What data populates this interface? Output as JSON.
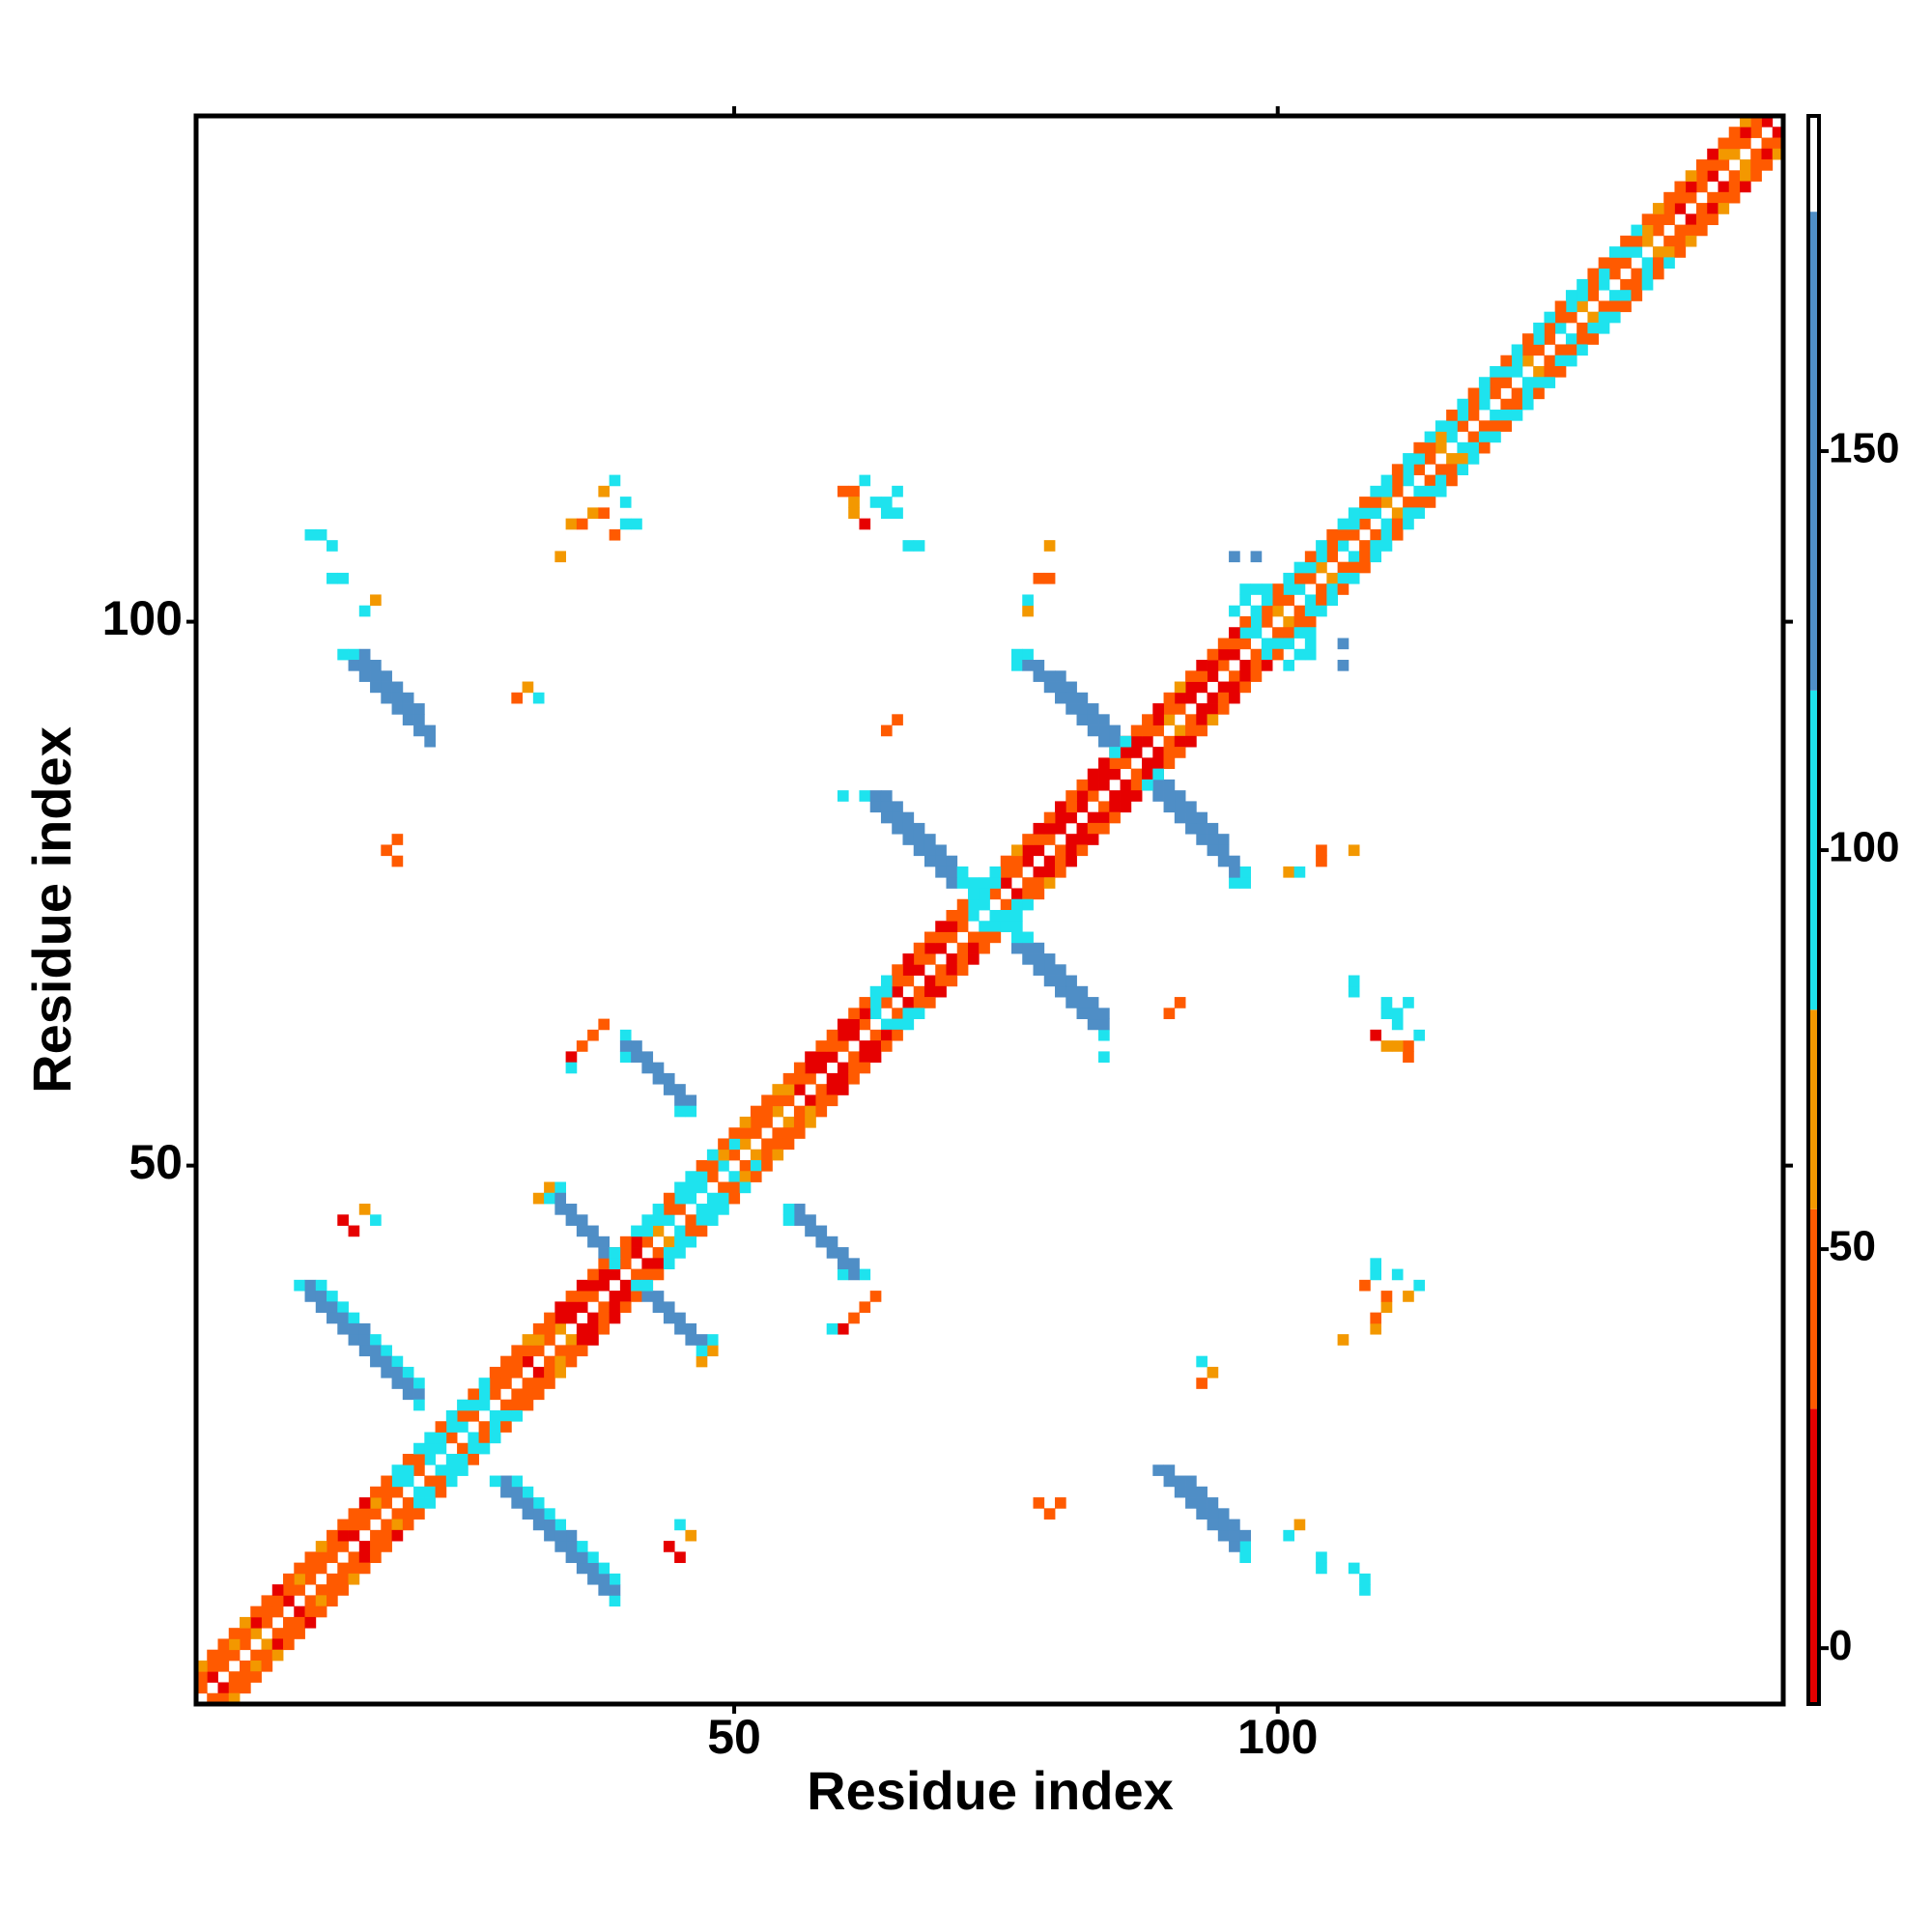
{
  "chart_data": {
    "type": "heatmap",
    "x_label": "Residue index",
    "y_label": "Residue index",
    "xlim": [
      0.5,
      146.5
    ],
    "ylim": [
      0.5,
      146.5
    ],
    "xticks": [
      50,
      100
    ],
    "yticks": [
      50,
      100
    ],
    "symmetric": true,
    "colorbar": {
      "lim": [
        -7,
        192
      ],
      "ticks": [
        0,
        50,
        100,
        150
      ],
      "stops": [
        {
          "value": -7,
          "color": "#e60000"
        },
        {
          "value": 30,
          "color": "#ff5a00"
        },
        {
          "value": 55,
          "color": "#f39800"
        },
        {
          "value": 80,
          "color": "#1ee3ee"
        },
        {
          "value": 120,
          "color": "#4f8ec6"
        },
        {
          "value": 180,
          "color": "#ffffff"
        }
      ]
    },
    "diagonals": [
      {
        "offset": 1,
        "start": 1,
        "values": [
          40,
          10,
          40,
          40,
          40,
          65,
          40,
          40,
          10,
          40,
          40,
          40,
          40,
          40,
          10,
          40,
          40,
          40,
          40,
          95,
          40,
          95,
          95,
          40,
          95,
          40,
          95,
          40,
          40,
          40,
          10,
          40,
          40,
          65,
          10,
          10,
          40,
          10,
          10,
          40,
          10,
          40,
          65,
          95,
          40,
          95,
          95,
          40,
          95,
          40,
          65,
          40,
          40,
          65,
          40,
          10,
          40,
          10,
          10,
          40,
          10,
          40,
          95,
          40,
          10,
          40,
          10,
          40,
          10,
          40,
          40,
          95,
          95,
          40,
          10,
          40,
          10,
          10,
          40,
          10,
          10,
          10,
          40,
          10,
          10,
          40,
          10,
          10,
          40,
          65,
          40,
          10,
          10,
          10,
          40,
          10,
          40,
          95,
          40,
          65,
          40,
          95,
          40,
          65,
          40,
          95,
          40,
          40,
          95,
          65,
          40,
          95,
          40,
          40,
          65,
          95,
          40,
          40,
          95,
          40,
          40,
          95,
          65,
          40,
          40,
          95,
          40,
          65,
          40,
          95,
          40,
          40,
          95,
          65,
          40,
          40,
          10,
          40,
          40,
          10,
          40,
          65,
          40,
          40,
          10
        ]
      },
      {
        "offset": 2,
        "start": 1,
        "values": [
          40,
          40,
          40,
          65,
          40,
          10,
          40,
          40,
          40,
          65,
          40,
          40,
          40,
          10,
          40,
          40,
          65,
          40,
          95,
          95,
          40,
          95,
          95,
          95,
          40,
          95,
          95,
          40,
          40,
          40,
          40,
          65,
          40,
          10,
          10,
          40,
          10,
          10,
          10,
          40,
          10,
          95,
          95,
          40,
          95,
          95,
          95,
          40,
          65,
          95,
          40,
          40,
          40,
          40,
          65,
          40,
          10,
          10,
          40,
          10,
          10,
          10,
          95,
          95,
          40,
          10,
          40,
          10,
          40,
          10,
          40,
          95,
          95,
          95,
          40,
          40,
          10,
          40,
          10,
          10,
          40,
          10,
          10,
          10,
          40,
          10,
          10,
          40,
          10,
          40,
          10,
          10,
          40,
          10,
          10,
          40,
          95,
          95,
          40,
          40,
          95,
          40,
          95,
          95,
          40,
          40,
          95,
          95,
          40,
          95,
          40,
          95,
          95,
          40,
          65,
          95,
          95,
          40,
          95,
          40,
          95,
          95,
          40,
          95,
          40,
          40,
          95,
          95,
          40,
          95,
          40,
          95,
          40,
          65,
          40,
          40,
          40,
          10,
          40,
          40,
          65,
          40,
          10,
          40
        ]
      },
      {
        "offset": 3,
        "start": 1,
        "values": [
          65,
          40,
          40,
          40,
          65,
          40,
          40,
          10,
          40,
          40,
          40,
          65,
          40,
          40,
          40,
          10,
          40,
          40,
          95,
          40,
          95,
          95,
          40,
          95,
          95,
          40,
          95,
          40,
          40,
          40,
          65,
          40,
          40,
          10,
          40,
          10,
          40,
          40,
          10,
          40,
          95,
          95,
          95,
          40,
          95,
          95,
          40,
          95,
          40,
          40,
          65,
          40,
          40,
          65,
          40,
          40,
          10,
          40,
          40,
          10,
          40,
          40,
          95,
          95,
          40,
          10,
          40,
          40,
          10,
          40,
          40,
          95,
          95,
          95,
          40,
          65,
          40,
          10,
          40,
          10,
          40,
          40,
          10,
          10,
          40,
          10,
          40,
          40,
          10,
          40,
          65,
          40,
          10,
          40,
          40,
          10,
          40,
          95,
          95,
          40,
          95,
          95,
          40,
          95,
          40,
          95,
          95,
          40,
          95,
          95,
          40,
          95,
          40,
          95,
          95,
          40,
          95,
          40,
          95,
          95,
          40,
          95,
          40,
          95,
          95,
          40,
          95,
          95,
          40,
          40,
          95,
          40,
          95,
          40,
          65,
          40,
          40,
          65,
          40,
          10,
          40,
          40,
          65
        ]
      }
    ],
    "cells": [
      [
        14,
        97,
        95
      ],
      [
        15,
        97,
        95
      ],
      [
        16,
        97,
        150
      ],
      [
        15,
        96,
        150
      ],
      [
        16,
        96,
        150
      ],
      [
        17,
        96,
        150
      ],
      [
        16,
        95,
        150
      ],
      [
        17,
        95,
        150
      ],
      [
        18,
        95,
        150
      ],
      [
        17,
        94,
        150
      ],
      [
        18,
        94,
        150
      ],
      [
        19,
        94,
        150
      ],
      [
        18,
        93,
        150
      ],
      [
        19,
        93,
        150
      ],
      [
        20,
        93,
        150
      ],
      [
        19,
        92,
        150
      ],
      [
        20,
        92,
        150
      ],
      [
        21,
        92,
        150
      ],
      [
        20,
        91,
        150
      ],
      [
        21,
        91,
        150
      ],
      [
        21,
        90,
        150
      ],
      [
        22,
        90,
        150
      ],
      [
        22,
        89,
        150
      ],
      [
        10,
        39,
        95
      ],
      [
        11,
        39,
        150
      ],
      [
        12,
        39,
        95
      ],
      [
        11,
        38,
        150
      ],
      [
        12,
        38,
        150
      ],
      [
        13,
        38,
        95
      ],
      [
        12,
        37,
        150
      ],
      [
        13,
        37,
        150
      ],
      [
        14,
        37,
        95
      ],
      [
        13,
        36,
        150
      ],
      [
        14,
        36,
        150
      ],
      [
        15,
        36,
        95
      ],
      [
        14,
        35,
        150
      ],
      [
        15,
        35,
        150
      ],
      [
        16,
        35,
        150
      ],
      [
        15,
        34,
        150
      ],
      [
        16,
        34,
        150
      ],
      [
        17,
        34,
        95
      ],
      [
        16,
        33,
        150
      ],
      [
        17,
        33,
        150
      ],
      [
        18,
        33,
        95
      ],
      [
        17,
        32,
        150
      ],
      [
        18,
        32,
        150
      ],
      [
        19,
        32,
        95
      ],
      [
        18,
        31,
        150
      ],
      [
        19,
        31,
        150
      ],
      [
        20,
        31,
        95
      ],
      [
        19,
        30,
        150
      ],
      [
        20,
        30,
        150
      ],
      [
        21,
        30,
        95
      ],
      [
        20,
        29,
        150
      ],
      [
        21,
        29,
        150
      ],
      [
        21,
        28,
        95
      ],
      [
        32,
        47,
        65
      ],
      [
        33,
        48,
        65
      ],
      [
        34,
        48,
        95
      ],
      [
        33,
        47,
        95
      ],
      [
        34,
        47,
        150
      ],
      [
        34,
        46,
        150
      ],
      [
        35,
        46,
        150
      ],
      [
        35,
        45,
        150
      ],
      [
        36,
        45,
        150
      ],
      [
        36,
        44,
        150
      ],
      [
        37,
        44,
        150
      ],
      [
        37,
        43,
        150
      ],
      [
        38,
        43,
        150
      ],
      [
        38,
        42,
        150
      ],
      [
        39,
        42,
        95
      ],
      [
        39,
        41,
        95
      ],
      [
        40,
        62,
        95
      ],
      [
        40,
        60,
        95
      ],
      [
        40,
        61,
        150
      ],
      [
        41,
        61,
        150
      ],
      [
        41,
        60,
        150
      ],
      [
        42,
        60,
        150
      ],
      [
        42,
        59,
        150
      ],
      [
        43,
        59,
        150
      ],
      [
        43,
        58,
        150
      ],
      [
        44,
        58,
        150
      ],
      [
        44,
        57,
        150
      ],
      [
        45,
        57,
        150
      ],
      [
        45,
        56,
        150
      ],
      [
        46,
        56,
        150
      ],
      [
        45,
        55,
        95
      ],
      [
        46,
        55,
        95
      ],
      [
        60,
        84,
        95
      ],
      [
        62,
        84,
        95
      ],
      [
        63,
        84,
        150
      ],
      [
        64,
        84,
        150
      ],
      [
        63,
        83,
        150
      ],
      [
        64,
        83,
        150
      ],
      [
        65,
        83,
        150
      ],
      [
        64,
        82,
        150
      ],
      [
        65,
        82,
        150
      ],
      [
        66,
        82,
        150
      ],
      [
        65,
        81,
        150
      ],
      [
        66,
        81,
        150
      ],
      [
        67,
        81,
        150
      ],
      [
        66,
        80,
        150
      ],
      [
        67,
        80,
        150
      ],
      [
        68,
        80,
        150
      ],
      [
        67,
        79,
        150
      ],
      [
        68,
        79,
        150
      ],
      [
        69,
        79,
        150
      ],
      [
        68,
        78,
        150
      ],
      [
        69,
        78,
        150
      ],
      [
        70,
        78,
        150
      ],
      [
        69,
        77,
        150
      ],
      [
        70,
        77,
        150
      ],
      [
        71,
        77,
        95
      ],
      [
        70,
        76,
        150
      ],
      [
        71,
        76,
        95
      ],
      [
        72,
        76,
        95
      ],
      [
        72,
        75,
        95
      ],
      [
        76,
        97,
        95
      ],
      [
        76,
        96,
        95
      ],
      [
        77,
        97,
        95
      ],
      [
        77,
        96,
        150
      ],
      [
        78,
        96,
        150
      ],
      [
        78,
        95,
        150
      ],
      [
        79,
        95,
        150
      ],
      [
        80,
        95,
        150
      ],
      [
        79,
        94,
        150
      ],
      [
        80,
        94,
        150
      ],
      [
        81,
        94,
        150
      ],
      [
        80,
        93,
        150
      ],
      [
        81,
        93,
        150
      ],
      [
        82,
        93,
        150
      ],
      [
        81,
        92,
        150
      ],
      [
        82,
        92,
        150
      ],
      [
        83,
        92,
        150
      ],
      [
        82,
        91,
        150
      ],
      [
        83,
        91,
        150
      ],
      [
        84,
        91,
        150
      ],
      [
        83,
        90,
        150
      ],
      [
        84,
        90,
        150
      ],
      [
        85,
        90,
        150
      ],
      [
        84,
        89,
        150
      ],
      [
        85,
        89,
        150
      ],
      [
        86,
        89,
        95
      ],
      [
        85,
        88,
        95
      ],
      [
        11,
        108,
        95
      ],
      [
        12,
        108,
        95
      ],
      [
        13,
        107,
        95
      ],
      [
        13,
        104,
        95
      ],
      [
        14,
        104,
        95
      ],
      [
        16,
        101,
        95
      ],
      [
        17,
        102,
        65
      ],
      [
        30,
        93,
        40
      ],
      [
        31,
        94,
        65
      ],
      [
        32,
        93,
        95
      ],
      [
        18,
        79,
        40
      ],
      [
        19,
        80,
        40
      ],
      [
        19,
        78,
        40
      ],
      [
        64,
        90,
        40
      ],
      [
        65,
        91,
        40
      ],
      [
        35,
        60,
        10
      ],
      [
        36,
        61,
        40
      ],
      [
        37,
        62,
        40
      ],
      [
        38,
        63,
        40
      ],
      [
        35,
        59,
        95
      ],
      [
        14,
        45,
        10
      ],
      [
        15,
        44,
        10
      ],
      [
        16,
        46,
        65
      ],
      [
        17,
        45,
        95
      ],
      [
        34,
        106,
        65
      ],
      [
        35,
        109,
        65
      ],
      [
        36,
        109,
        40
      ],
      [
        37,
        110,
        65
      ],
      [
        38,
        112,
        65
      ],
      [
        39,
        113,
        95
      ],
      [
        40,
        111,
        95
      ],
      [
        40,
        109,
        95
      ],
      [
        41,
        109,
        95
      ],
      [
        38,
        110,
        40
      ],
      [
        39,
        108,
        40
      ],
      [
        60,
        112,
        40
      ],
      [
        61,
        112,
        40
      ],
      [
        62,
        113,
        95
      ],
      [
        61,
        111,
        65
      ],
      [
        61,
        110,
        65
      ],
      [
        62,
        109,
        10
      ],
      [
        63,
        111,
        95
      ],
      [
        64,
        111,
        95
      ],
      [
        64,
        110,
        95
      ],
      [
        65,
        110,
        95
      ],
      [
        65,
        112,
        95
      ],
      [
        66,
        107,
        95
      ],
      [
        67,
        107,
        95
      ],
      [
        79,
        107,
        65
      ],
      [
        78,
        104,
        40
      ],
      [
        79,
        104,
        40
      ],
      [
        77,
        101,
        65
      ],
      [
        77,
        102,
        95
      ],
      [
        96,
        106,
        150
      ],
      [
        98,
        106,
        150
      ],
      [
        97,
        103,
        95
      ],
      [
        98,
        103,
        95
      ],
      [
        99,
        103,
        95
      ],
      [
        96,
        101,
        95
      ],
      [
        97,
        102,
        95
      ]
    ]
  }
}
